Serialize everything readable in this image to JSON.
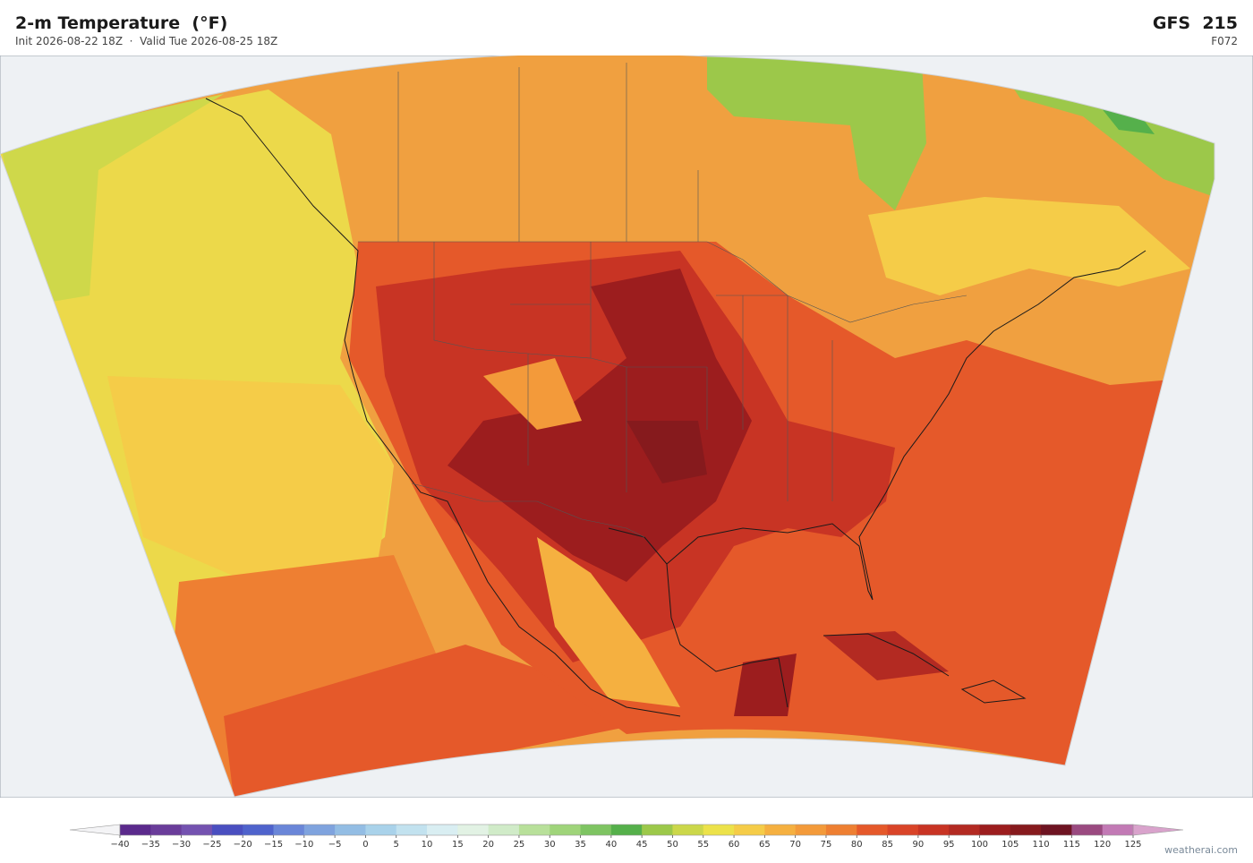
{
  "header": {
    "title": "2-m Temperature  (°F)",
    "subtitle": "Init 2026-08-22 18Z  ·  Valid Tue 2026-08-25 18Z",
    "model": "GFS  215",
    "forecast_hour": "F072"
  },
  "colorbar": {
    "ticks": [
      {
        "value": -40,
        "label": "−40"
      },
      {
        "value": -35,
        "label": "−35"
      },
      {
        "value": -30,
        "label": "−30"
      },
      {
        "value": -25,
        "label": "−25"
      },
      {
        "value": -20,
        "label": "−20"
      },
      {
        "value": -15,
        "label": "−15"
      },
      {
        "value": -10,
        "label": "−10"
      },
      {
        "value": -5,
        "label": "−5"
      },
      0,
      5,
      10,
      15,
      20,
      25,
      30,
      35,
      40,
      45,
      50,
      55,
      60,
      65,
      70,
      75,
      80,
      85,
      90,
      95,
      100,
      105,
      110,
      115,
      120,
      125
    ],
    "colors": [
      "#5b2a8c",
      "#6a3d9a",
      "#7452b0",
      "#4a4fc0",
      "#4f63cc",
      "#6a86d8",
      "#7fa3de",
      "#93bde4",
      "#a9d2ea",
      "#c2e2ef",
      "#d9eef2",
      "#e2f2e4",
      "#d0ebc8",
      "#b8e09a",
      "#9fd47a",
      "#7ec462",
      "#55b04b",
      "#9cc84a",
      "#cbd74a",
      "#ece24a",
      "#f5cc48",
      "#f5b040",
      "#f39a3a",
      "#ee7f32",
      "#e5592a",
      "#d94428",
      "#c83424",
      "#b32a22",
      "#9c1d1e",
      "#861a1d",
      "#6e1422",
      "#9a4a80",
      "#c27ab5"
    ],
    "under_color": "#f4f4f6",
    "over_color": "#d9a3cc"
  },
  "footer": {
    "watermark": "weatherai.com"
  }
}
